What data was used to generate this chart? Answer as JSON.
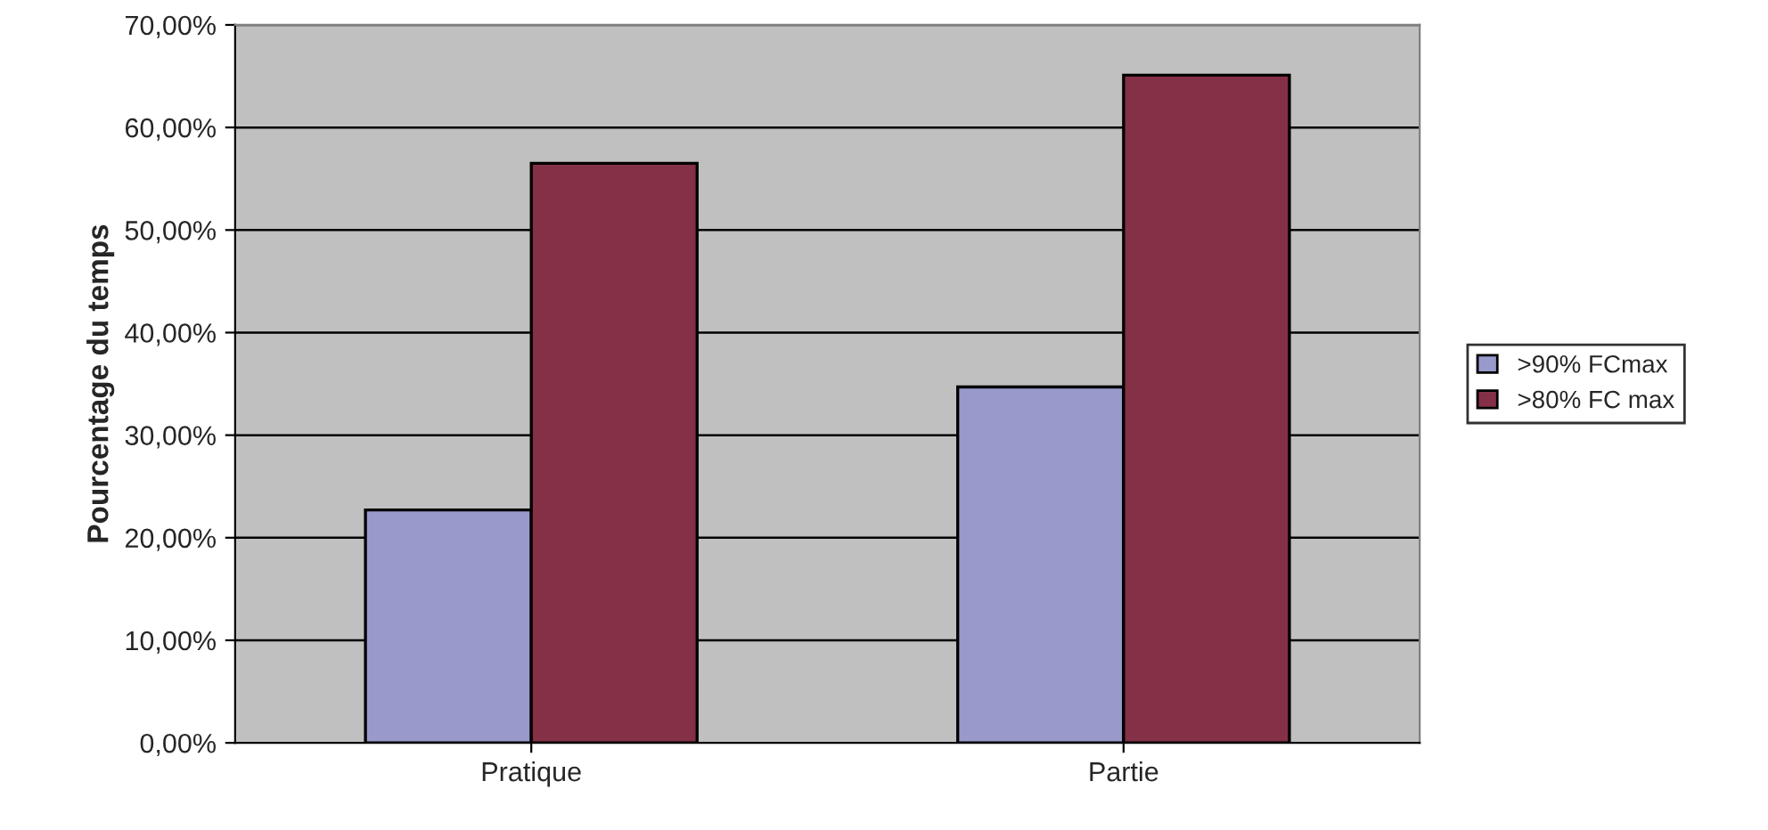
{
  "chart_data": {
    "type": "bar",
    "ylabel": "Pourcentage du temps",
    "categories": [
      "Pratique",
      "Partie"
    ],
    "series": [
      {
        "name": ">90% FCmax",
        "color": "#9999cc",
        "values": [
          22.7,
          34.7
        ]
      },
      {
        "name": ">80% FC max",
        "color": "#843047",
        "values": [
          56.5,
          65.1
        ]
      }
    ],
    "ylim": [
      0,
      70
    ],
    "yticks": [
      {
        "value": 0,
        "label": "0,00%"
      },
      {
        "value": 10,
        "label": "10,00%"
      },
      {
        "value": 20,
        "label": "20,00%"
      },
      {
        "value": 30,
        "label": "30,00%"
      },
      {
        "value": 40,
        "label": "40,00%"
      },
      {
        "value": 50,
        "label": "50,00%"
      },
      {
        "value": 60,
        "label": "60,00%"
      },
      {
        "value": 70,
        "label": "70,00%"
      }
    ],
    "grid": "y",
    "legend": "right"
  }
}
